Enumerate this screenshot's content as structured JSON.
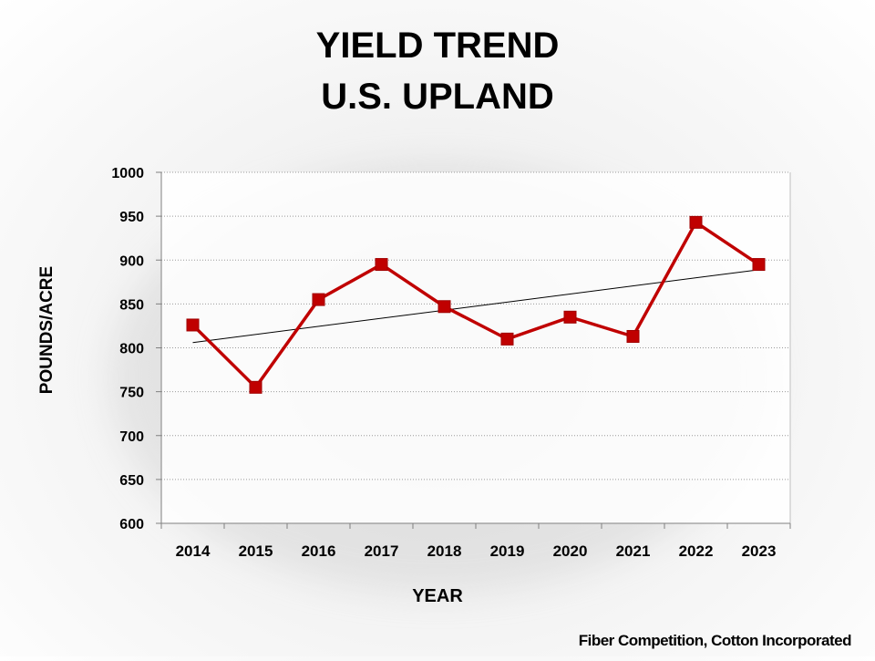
{
  "chart_data": {
    "type": "line",
    "title": "YIELD TREND",
    "subtitle": "U.S. UPLAND",
    "xlabel": "YEAR",
    "ylabel": "POUNDS/ACRE",
    "categories": [
      "2014",
      "2015",
      "2016",
      "2017",
      "2018",
      "2019",
      "2020",
      "2021",
      "2022",
      "2023"
    ],
    "series": [
      {
        "name": "Yield",
        "values": [
          826,
          755,
          855,
          895,
          847,
          810,
          835,
          813,
          943,
          895
        ],
        "color": "#c00000"
      }
    ],
    "trendline": {
      "start": 806,
      "end": 889,
      "color": "#000000"
    },
    "yticks": [
      600,
      650,
      700,
      750,
      800,
      850,
      900,
      950,
      1000
    ],
    "ylim": [
      600,
      1000
    ],
    "grid": true
  },
  "source": "Fiber Competition, Cotton Incorporated"
}
